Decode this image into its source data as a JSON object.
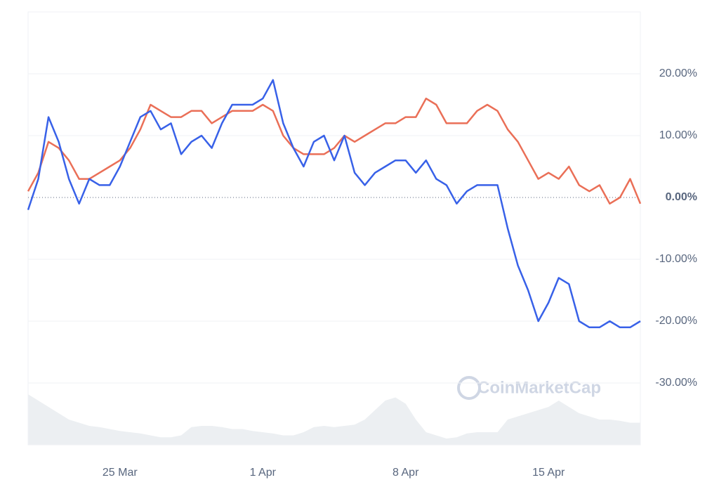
{
  "chart_data": {
    "type": "line",
    "watermark": "CoinMarketCap",
    "categories": [
      null,
      null,
      null,
      null,
      null,
      null,
      null,
      null,
      null,
      "25 Mar",
      null,
      null,
      null,
      null,
      null,
      null,
      null,
      null,
      null,
      null,
      null,
      null,
      null,
      "1 Apr",
      null,
      null,
      null,
      null,
      null,
      null,
      null,
      null,
      null,
      null,
      null,
      null,
      null,
      "8 Apr",
      null,
      null,
      null,
      null,
      null,
      null,
      null,
      null,
      null,
      null,
      null,
      null,
      null,
      "15 Apr",
      null,
      null,
      null,
      null,
      null,
      null,
      null,
      null,
      null
    ],
    "series": [
      {
        "color": "#ea6f57",
        "values": [
          1,
          4,
          9,
          8,
          6,
          3,
          3,
          4,
          5,
          6,
          8,
          11,
          15,
          14,
          13,
          13,
          14,
          14,
          12,
          13,
          14,
          14,
          14,
          15,
          14,
          10,
          8,
          7,
          7,
          7,
          8,
          10,
          9,
          10,
          11,
          12,
          12,
          13,
          13,
          16,
          15,
          12,
          12,
          12,
          14,
          15,
          14,
          11,
          9,
          6,
          3,
          4,
          3,
          5,
          2,
          1,
          2,
          -1,
          0,
          3,
          -1
        ]
      },
      {
        "color": "#3861e8",
        "values": [
          -2,
          3,
          13,
          9,
          3,
          -1,
          3,
          2,
          2,
          5,
          9,
          13,
          14,
          11,
          12,
          7,
          9,
          10,
          8,
          12,
          15,
          15,
          15,
          16,
          19,
          12,
          8,
          5,
          9,
          10,
          6,
          10,
          4,
          2,
          4,
          5,
          6,
          6,
          4,
          6,
          3,
          2,
          -1,
          1,
          2,
          2,
          2,
          -5,
          -11,
          -15,
          -20,
          -17,
          -13,
          -14,
          -20,
          -21,
          -21,
          -20,
          -21,
          -21,
          -20
        ]
      },
      {
        "color": "#eceff2",
        "type": "area",
        "axis": "y2",
        "values": [
          80,
          70,
          60,
          50,
          40,
          35,
          30,
          28,
          25,
          22,
          20,
          18,
          15,
          12,
          12,
          15,
          28,
          30,
          30,
          28,
          25,
          25,
          22,
          20,
          18,
          15,
          15,
          20,
          28,
          30,
          28,
          30,
          32,
          40,
          55,
          70,
          75,
          65,
          40,
          20,
          15,
          10,
          12,
          18,
          20,
          20,
          20,
          40,
          45,
          50,
          55,
          60,
          70,
          60,
          50,
          45,
          40,
          40,
          38,
          35,
          35
        ]
      }
    ],
    "ylim": [
      -40,
      30
    ],
    "yticks": [
      {
        "value": -30,
        "label": "-30.00%"
      },
      {
        "value": -20,
        "label": "-20.00%"
      },
      {
        "value": -10,
        "label": "-10.00%"
      },
      {
        "value": 0,
        "label": "0.00%"
      },
      {
        "value": 10,
        "label": "10.00%"
      },
      {
        "value": 20,
        "label": "20.00%"
      }
    ],
    "y2lim": [
      0,
      100
    ],
    "grid": true
  }
}
